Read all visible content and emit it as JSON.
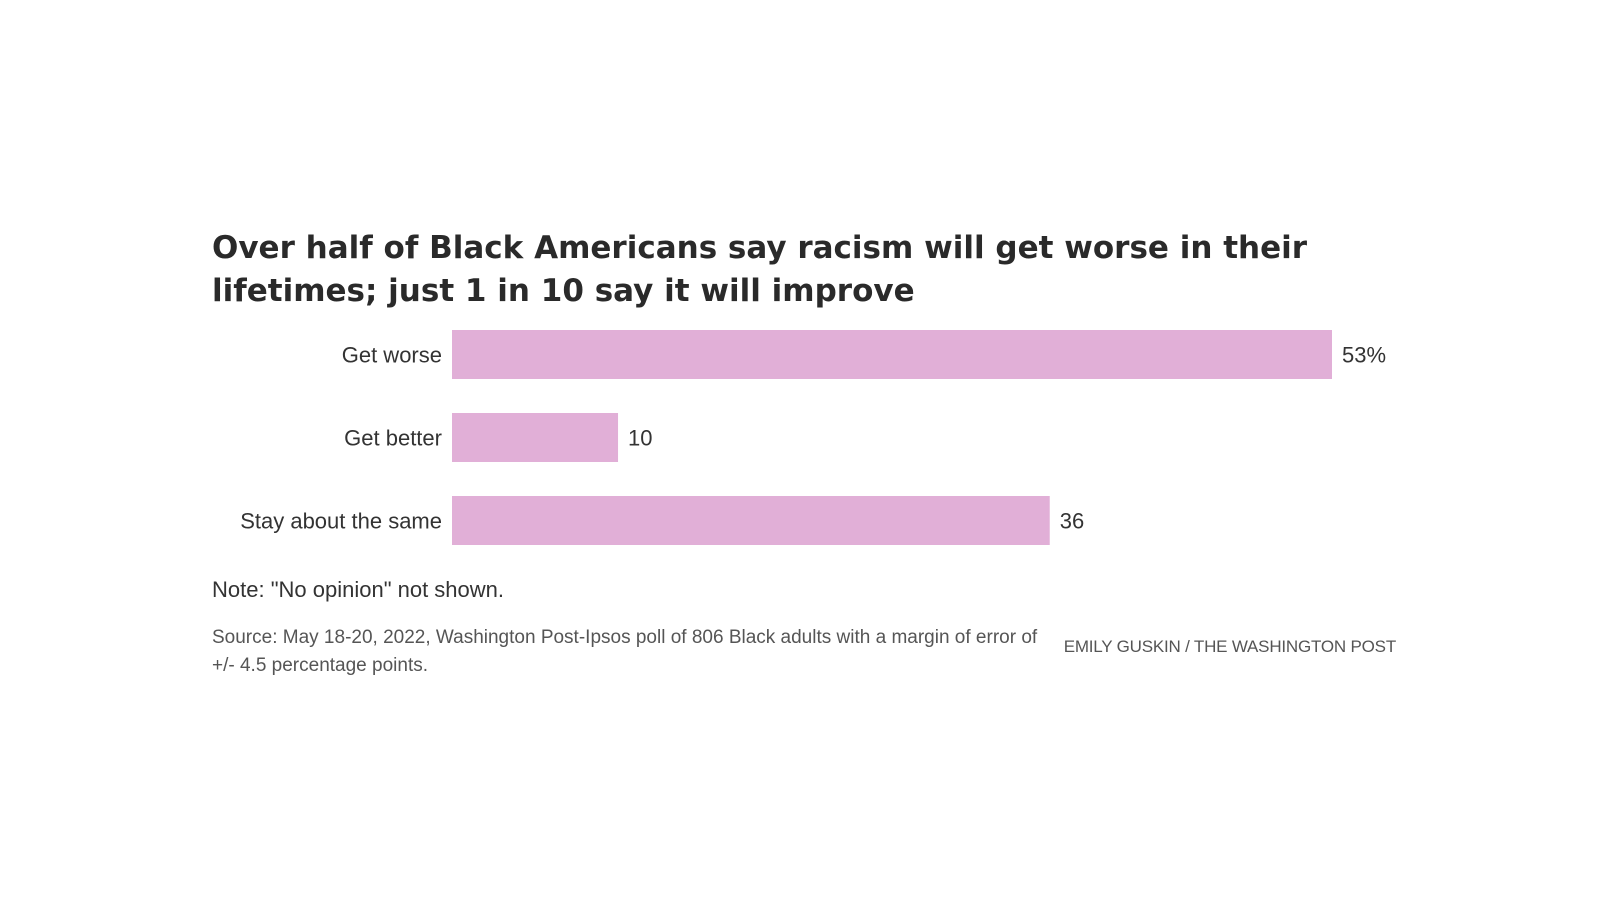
{
  "chart_data": {
    "type": "bar",
    "orientation": "horizontal",
    "title": "Over half of Black Americans say racism will get worse in their lifetimes; just 1 in 10 say it will improve",
    "categories": [
      "Get worse",
      "Get better",
      "Stay about the same"
    ],
    "values": [
      53,
      10,
      36
    ],
    "data_labels": [
      "53%",
      "10",
      "36"
    ],
    "xlim": [
      0,
      53
    ],
    "grid": false,
    "bar_color": "#e1afd7",
    "note": "Note: \"No opinion\" not shown.",
    "source": "Source: May 18-20, 2022, Washington Post-Ipsos poll of 806 Black adults with a margin of error of +/- 4.5 percentage points.",
    "credit": "EMILY GUSKIN / THE WASHINGTON POST"
  }
}
